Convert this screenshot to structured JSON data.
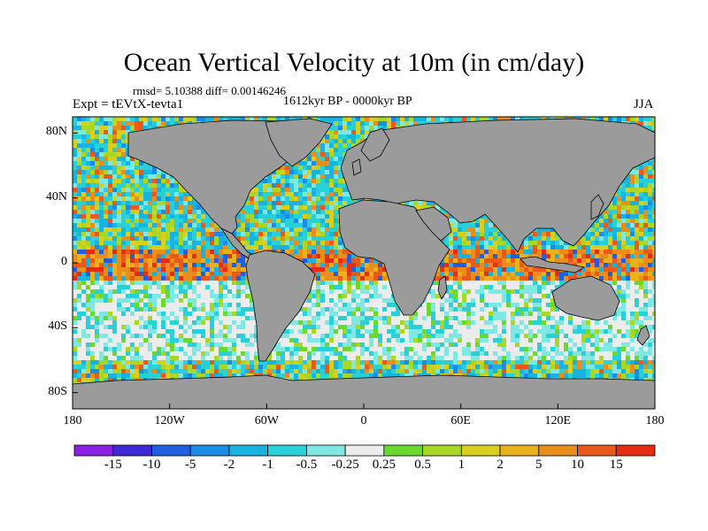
{
  "title": "Ocean Vertical Velocity at 10m (in cm/day)",
  "stats": "rmsd= 5.10388  diff= 0.00146246",
  "period": "1612kyr BP - 0000kyr BP",
  "experiment": "Expt = tEVtX-tevta1",
  "season": "JJA",
  "map": {
    "projection": "cylindrical-equidistant",
    "lon_range": [
      -180,
      180
    ],
    "lat_range": [
      -90,
      90
    ],
    "land_color": "#9b9b9b",
    "lat_ticks": [
      "80N",
      "40N",
      "0",
      "40S",
      "80S"
    ],
    "lon_ticks": [
      "180",
      "120W",
      "60W",
      "0",
      "60E",
      "120E",
      "180"
    ]
  },
  "colorbar": {
    "labels": [
      "-15",
      "-10",
      "-5",
      "-2",
      "-1",
      "-0.5",
      "-0.25",
      "0.25",
      "0.5",
      "1",
      "2",
      "5",
      "10",
      "15"
    ],
    "colors": [
      "#8c1fe6",
      "#3f29d6",
      "#1f5fe0",
      "#1a8ce6",
      "#19b3e0",
      "#2ad0d8",
      "#7fe8e3",
      "#ececec",
      "#6ad92e",
      "#a8d726",
      "#d8cf1e",
      "#e8b21c",
      "#ea8d1a",
      "#e8591a",
      "#e42d14"
    ]
  }
}
